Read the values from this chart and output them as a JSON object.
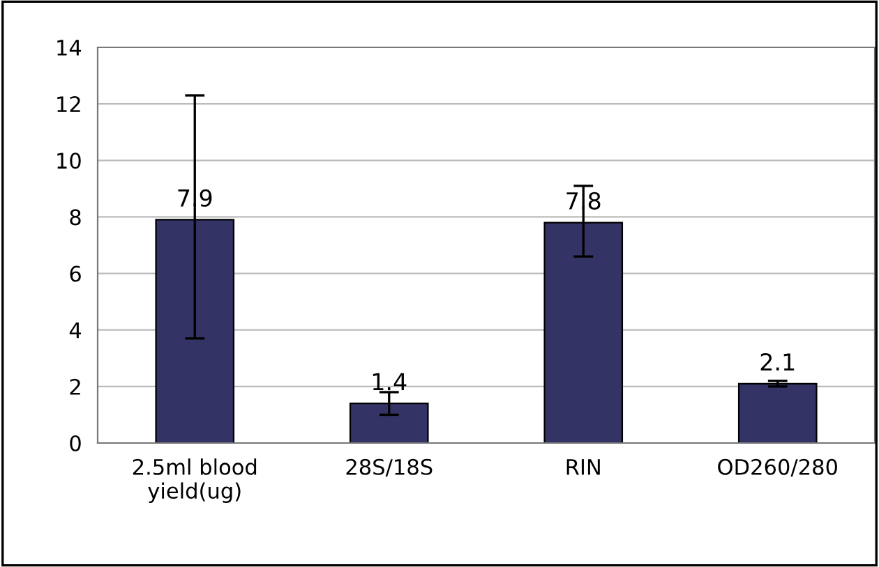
{
  "chart_data": {
    "type": "bar",
    "categories": [
      "2.5ml blood\nyield(ug)",
      "28S/18S",
      "RIN",
      "OD260/280"
    ],
    "values": [
      7.9,
      1.4,
      7.8,
      2.1
    ],
    "errors": [
      [
        3.7,
        12.3
      ],
      [
        1.0,
        1.8
      ],
      [
        6.6,
        9.1
      ],
      [
        2.0,
        2.2
      ]
    ],
    "color": "#333366",
    "data_labels": true,
    "ylim": [
      0,
      14
    ],
    "yticks": [
      0,
      2,
      4,
      6,
      8,
      10,
      12,
      14
    ],
    "grid": "y",
    "legend": false
  }
}
